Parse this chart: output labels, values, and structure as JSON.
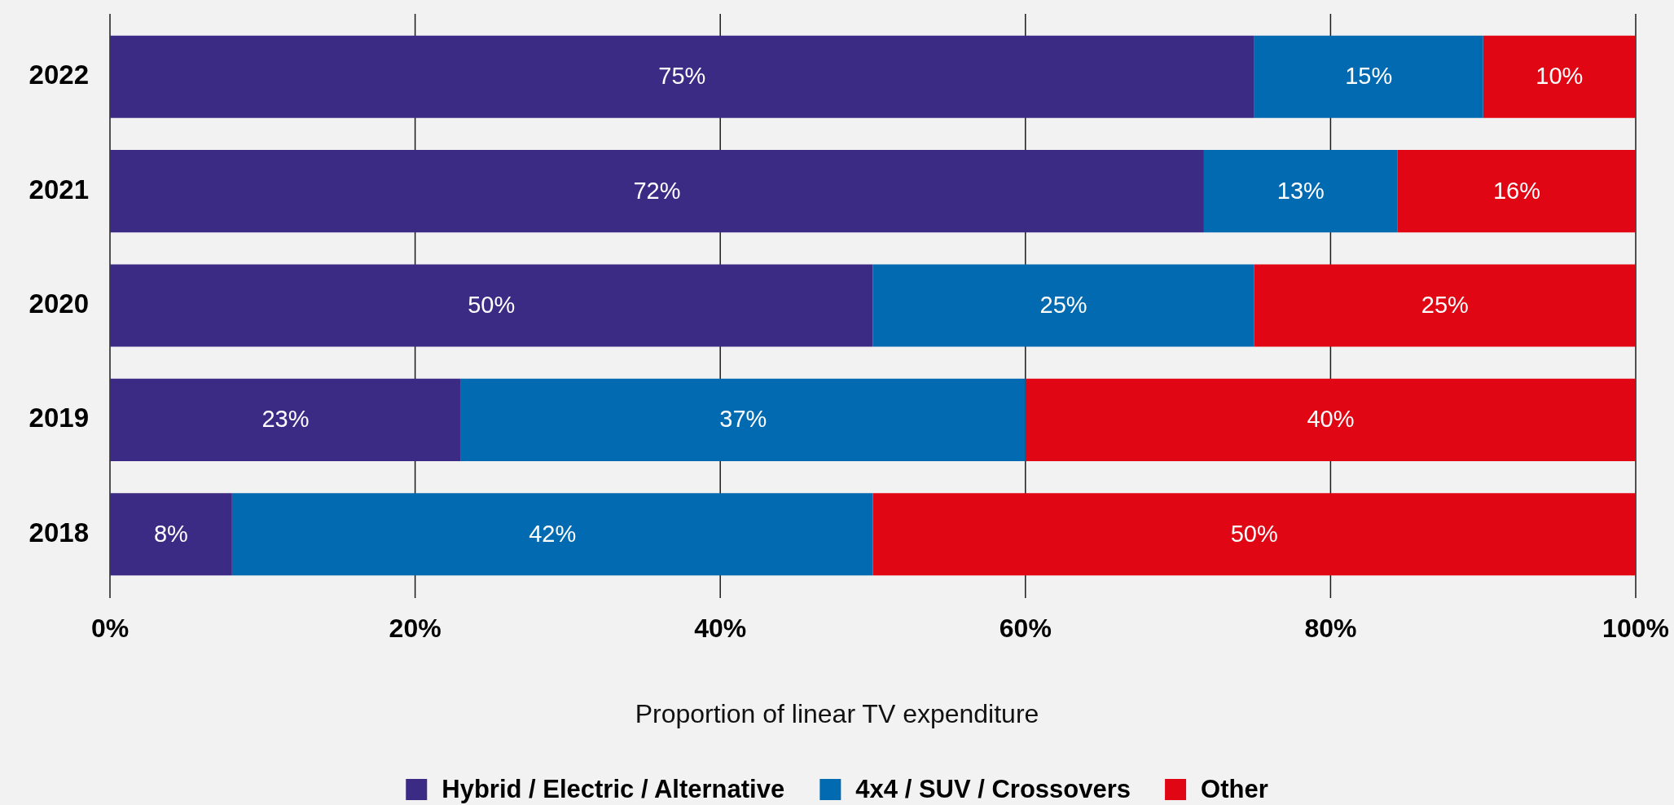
{
  "chart_data": {
    "type": "bar",
    "orientation": "horizontal",
    "stacked": true,
    "categories": [
      "2022",
      "2021",
      "2020",
      "2019",
      "2018"
    ],
    "series": [
      {
        "name": "Hybrid / Electric / Alternative",
        "color": "#3c2b85",
        "values": [
          75,
          71.7,
          50,
          23,
          8
        ],
        "value_labels": [
          "75%",
          "72%",
          "50%",
          "23%",
          "8%"
        ]
      },
      {
        "name": "4x4 / SUV / Crossovers",
        "color": "#026ab1",
        "values": [
          15,
          12.7,
          25,
          37,
          42
        ],
        "value_labels": [
          "15%",
          "13%",
          "25%",
          "37%",
          "42%"
        ]
      },
      {
        "name": "Other",
        "color": "#e00613",
        "values": [
          10,
          15.6,
          25,
          40,
          50
        ],
        "value_labels": [
          "10%",
          "16%",
          "25%",
          "40%",
          "50%"
        ]
      }
    ],
    "xlim": [
      0,
      100
    ],
    "xticks": [
      {
        "value": 0,
        "label": "0%"
      },
      {
        "value": 20,
        "label": "20%"
      },
      {
        "value": 40,
        "label": "40%"
      },
      {
        "value": 60,
        "label": "60%"
      },
      {
        "value": 80,
        "label": "80%"
      },
      {
        "value": 100,
        "label": "100%"
      }
    ],
    "xlabel": "Proportion of linear TV expenditure",
    "grid": "x",
    "legend": "bottom"
  }
}
